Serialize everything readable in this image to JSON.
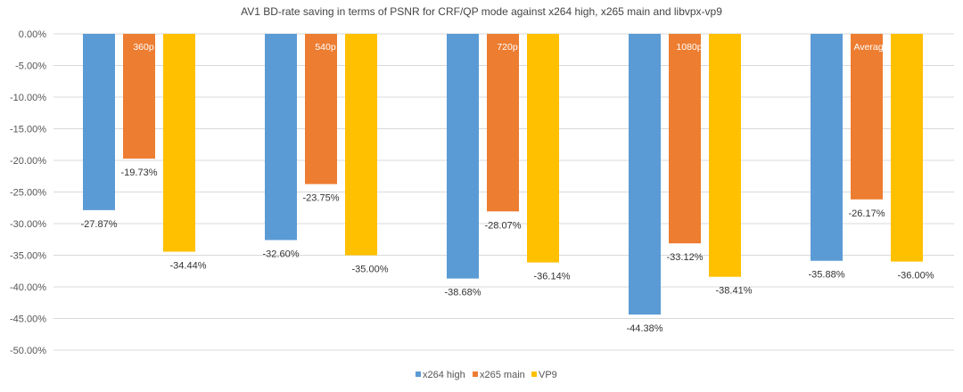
{
  "chart_data": {
    "type": "bar",
    "title": "AV1 BD-rate saving in terms of PSNR for CRF/QP mode against x264 high, x265 main and libvpx-vp9",
    "categories": [
      "360p",
      "540p",
      "720p",
      "1080p",
      "Average"
    ],
    "series": [
      {
        "name": "x264 high",
        "color": "#5B9BD5",
        "values": [
          -27.87,
          -32.6,
          -38.68,
          -44.38,
          -35.88
        ]
      },
      {
        "name": "x265 main",
        "color": "#ED7D31",
        "values": [
          -19.73,
          -23.75,
          -28.07,
          -33.12,
          -26.17
        ]
      },
      {
        "name": "VP9",
        "color": "#FFC000",
        "values": [
          -34.44,
          -35.0,
          -36.14,
          -38.41,
          -36.0
        ]
      }
    ],
    "data_labels": [
      [
        "-27.87%",
        "-32.60%",
        "-38.68%",
        "-44.38%",
        "-35.88%"
      ],
      [
        "-19.73%",
        "-23.75%",
        "-28.07%",
        "-33.12%",
        "-26.17%"
      ],
      [
        "-34.44%",
        "-35.00%",
        "-36.14%",
        "-38.41%",
        "-36.00%"
      ]
    ],
    "yticks": [
      "0.00%",
      "-5.00%",
      "-10.00%",
      "-15.00%",
      "-20.00%",
      "-25.00%",
      "-30.00%",
      "-35.00%",
      "-40.00%",
      "-45.00%",
      "-50.00%"
    ],
    "ylim": [
      -50,
      0
    ],
    "grid": true,
    "legend_position": "bottom-center",
    "category_label_position": "inside-top-of-middle-bar"
  }
}
